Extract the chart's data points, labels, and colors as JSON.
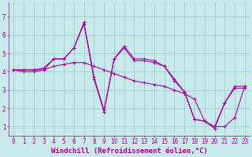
{
  "xlabel": "Windchill (Refroidissement éolien,°C)",
  "bg_color": "#c8eaea",
  "line_color": "#aa00aa",
  "grid_color": "#9ecece",
  "axis_color": "#aa00aa",
  "xlim": [
    -0.5,
    23.5
  ],
  "ylim": [
    0.5,
    7.8
  ],
  "yticks": [
    1,
    2,
    3,
    4,
    5,
    6,
    7
  ],
  "xticks": [
    0,
    1,
    2,
    3,
    4,
    5,
    6,
    7,
    8,
    9,
    10,
    11,
    12,
    13,
    14,
    15,
    16,
    17,
    18,
    19,
    20,
    21,
    22,
    23
  ],
  "line1_x": [
    0,
    1,
    2,
    3,
    4,
    5,
    6,
    7,
    8,
    9,
    10,
    11,
    12,
    13,
    14,
    15,
    16,
    17,
    18,
    19,
    20,
    21,
    22,
    23
  ],
  "line1_y": [
    4.1,
    4.1,
    4.1,
    4.2,
    4.7,
    4.7,
    5.3,
    6.6,
    3.6,
    1.8,
    4.7,
    5.4,
    4.7,
    4.7,
    4.6,
    4.3,
    3.6,
    2.9,
    1.4,
    1.3,
    1.0,
    2.3,
    3.2,
    3.2
  ],
  "line2_x": [
    0,
    1,
    2,
    3,
    4,
    5,
    6,
    7,
    8,
    9,
    10,
    11,
    12,
    13,
    14,
    15,
    16,
    17,
    18,
    19,
    20,
    21,
    22,
    23
  ],
  "line2_y": [
    4.1,
    4.1,
    4.1,
    4.1,
    4.3,
    4.4,
    4.5,
    4.5,
    4.3,
    4.1,
    3.9,
    3.7,
    3.5,
    3.4,
    3.3,
    3.2,
    3.0,
    2.8,
    2.5,
    1.3,
    1.0,
    1.0,
    1.5,
    3.2
  ],
  "line3_x": [
    0,
    1,
    2,
    3,
    4,
    5,
    6,
    7,
    8,
    9,
    10,
    11,
    12,
    13,
    14,
    15,
    16,
    17,
    18,
    19,
    20,
    21,
    22,
    23
  ],
  "line3_y": [
    4.1,
    4.0,
    4.0,
    4.1,
    4.7,
    4.7,
    5.3,
    6.7,
    3.7,
    1.9,
    4.7,
    5.3,
    4.6,
    4.6,
    4.5,
    4.3,
    3.5,
    2.9,
    1.4,
    1.3,
    0.9,
    2.3,
    3.1,
    3.1
  ],
  "font_name": "monospace",
  "xlabel_fontsize": 6.5,
  "tick_fontsize": 5.5
}
